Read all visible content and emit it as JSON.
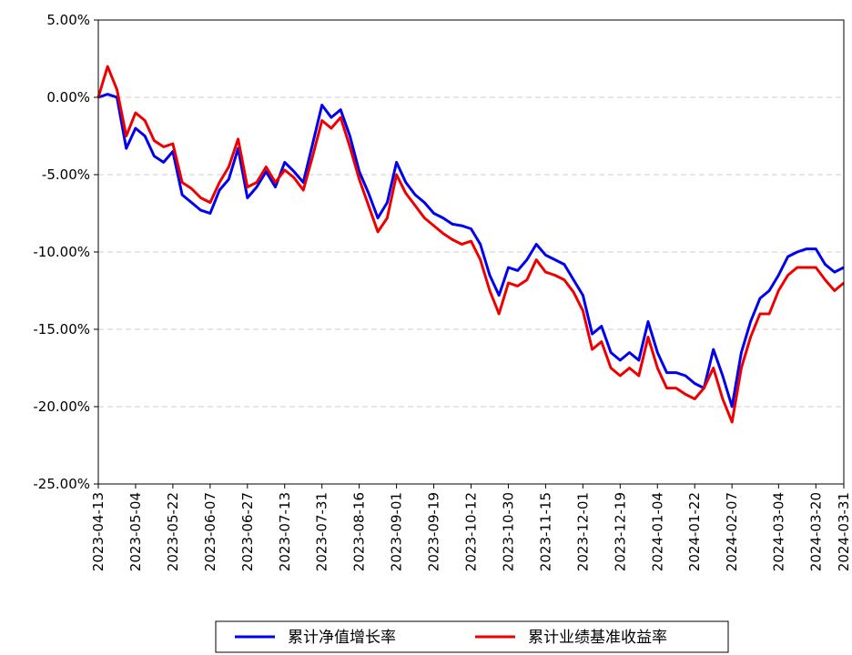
{
  "chart_data": {
    "type": "line",
    "categories": [
      "2023-04-13",
      null,
      null,
      null,
      "2023-05-04",
      null,
      null,
      null,
      "2023-05-22",
      null,
      null,
      null,
      "2023-06-07",
      null,
      null,
      null,
      "2023-06-27",
      null,
      null,
      null,
      "2023-07-13",
      null,
      null,
      null,
      "2023-07-31",
      null,
      null,
      null,
      "2023-08-16",
      null,
      null,
      null,
      "2023-09-01",
      null,
      null,
      null,
      "2023-09-19",
      null,
      null,
      null,
      "2023-10-12",
      null,
      null,
      null,
      "2023-10-30",
      null,
      null,
      null,
      "2023-11-15",
      null,
      null,
      null,
      "2023-12-01",
      null,
      null,
      null,
      "2023-12-19",
      null,
      null,
      null,
      "2024-01-04",
      null,
      null,
      null,
      "2024-01-22",
      null,
      null,
      null,
      "2024-02-07",
      null,
      null,
      null,
      null,
      "2024-03-04",
      null,
      null,
      null,
      "2024-03-20",
      null,
      null,
      "2024-03-31"
    ],
    "series": [
      {
        "name": "累计净值增长率",
        "color": "#0000ee",
        "values": [
          0,
          0.2,
          0,
          -3.3,
          -2,
          -2.5,
          -3.8,
          -4.2,
          -3.5,
          -6.3,
          -6.8,
          -7.3,
          -7.5,
          -6,
          -5.3,
          -3.3,
          -6.5,
          -5.8,
          -4.8,
          -5.8,
          -4.2,
          -4.8,
          -5.5,
          -3,
          -0.5,
          -1.3,
          -0.8,
          -2.5,
          -4.8,
          -6.2,
          -7.8,
          -6.8,
          -4.2,
          -5.5,
          -6.3,
          -6.8,
          -7.5,
          -7.8,
          -8.2,
          -8.3,
          -8.5,
          -9.5,
          -11.5,
          -12.8,
          -11,
          -11.2,
          -10.5,
          -9.5,
          -10.2,
          -10.5,
          -10.8,
          -11.8,
          -12.8,
          -15.3,
          -14.8,
          -16.5,
          -17,
          -16.5,
          -17,
          -14.5,
          -16.5,
          -17.8,
          -17.8,
          -18,
          -18.5,
          -18.8,
          -16.3,
          -18,
          -20,
          -16.5,
          -14.5,
          -13,
          -12.5,
          -11.5,
          -10.3,
          -10,
          -9.8,
          -9.8,
          -10.8,
          -11.3,
          -11
        ]
      },
      {
        "name": "累计业绩基准收益率",
        "color": "#ee0000",
        "values": [
          0,
          2,
          0.5,
          -2.5,
          -1,
          -1.5,
          -2.8,
          -3.2,
          -3,
          -5.5,
          -5.9,
          -6.5,
          -6.8,
          -5.5,
          -4.5,
          -2.7,
          -5.8,
          -5.5,
          -4.5,
          -5.5,
          -4.7,
          -5.2,
          -6,
          -3.8,
          -1.5,
          -2,
          -1.3,
          -3.2,
          -5.3,
          -7,
          -8.7,
          -7.8,
          -5,
          -6.2,
          -7,
          -7.8,
          -8.3,
          -8.8,
          -9.2,
          -9.5,
          -9.3,
          -10.5,
          -12.5,
          -14,
          -12,
          -12.2,
          -11.8,
          -10.5,
          -11.3,
          -11.5,
          -11.8,
          -12.6,
          -13.8,
          -16.3,
          -15.8,
          -17.5,
          -18,
          -17.5,
          -18,
          -15.5,
          -17.5,
          -18.8,
          -18.8,
          -19.2,
          -19.5,
          -18.8,
          -17.5,
          -19.5,
          -21,
          -17.5,
          -15.5,
          -14,
          -14,
          -12.5,
          -11.5,
          -11,
          -11,
          -11,
          -11.8,
          -12.5,
          -12
        ]
      }
    ],
    "ylim": [
      -25,
      5
    ],
    "yticks": [
      {
        "value": -25,
        "label": "-25.00%"
      },
      {
        "value": -20,
        "label": "-20.00%"
      },
      {
        "value": -15,
        "label": "-15.00%"
      },
      {
        "value": -10,
        "label": "-10.00%"
      },
      {
        "value": -5,
        "label": "-5.00%"
      },
      {
        "value": 0,
        "label": "0.00%"
      },
      {
        "value": 5,
        "label": "5.00%"
      }
    ],
    "grid": true,
    "legend": "bottom"
  }
}
